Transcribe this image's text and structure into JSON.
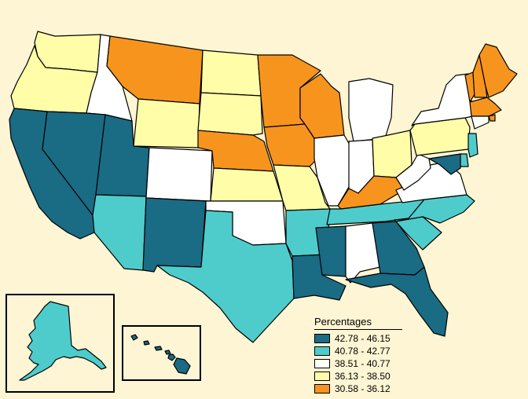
{
  "legend": {
    "title": "Percentages",
    "classes": [
      {
        "label": "42.78 - 46.15",
        "color": "#1A6B84"
      },
      {
        "label": "40.78 - 42.77",
        "color": "#4ECCCC"
      },
      {
        "label": "38.51 - 40.77",
        "color": "#FFFFFF"
      },
      {
        "label": "36.13 - 38.50",
        "color": "#FFFDA8"
      },
      {
        "label": "30.58 - 36.12",
        "color": "#F7941D"
      }
    ]
  },
  "states": [
    {
      "id": "WA",
      "class": 3
    },
    {
      "id": "OR",
      "class": 3
    },
    {
      "id": "CA",
      "class": 0
    },
    {
      "id": "ID",
      "class": 2
    },
    {
      "id": "NV",
      "class": 0
    },
    {
      "id": "MT",
      "class": 4
    },
    {
      "id": "WY",
      "class": 3
    },
    {
      "id": "UT",
      "class": 0
    },
    {
      "id": "AZ",
      "class": 1
    },
    {
      "id": "CO",
      "class": 2
    },
    {
      "id": "NM",
      "class": 0
    },
    {
      "id": "ND",
      "class": 3
    },
    {
      "id": "SD",
      "class": 3
    },
    {
      "id": "NE",
      "class": 4
    },
    {
      "id": "KS",
      "class": 3
    },
    {
      "id": "OK",
      "class": 2
    },
    {
      "id": "TX",
      "class": 1
    },
    {
      "id": "MN",
      "class": 4
    },
    {
      "id": "IA",
      "class": 4
    },
    {
      "id": "MO",
      "class": 3
    },
    {
      "id": "AR",
      "class": 1
    },
    {
      "id": "LA",
      "class": 0
    },
    {
      "id": "WI",
      "class": 4
    },
    {
      "id": "IL",
      "class": 2
    },
    {
      "id": "MI",
      "class": 2
    },
    {
      "id": "IN",
      "class": 2
    },
    {
      "id": "OH",
      "class": 3
    },
    {
      "id": "KY",
      "class": 4
    },
    {
      "id": "TN",
      "class": 1
    },
    {
      "id": "MS",
      "class": 0
    },
    {
      "id": "AL",
      "class": 2
    },
    {
      "id": "GA",
      "class": 0
    },
    {
      "id": "FL",
      "class": 0
    },
    {
      "id": "SC",
      "class": 1
    },
    {
      "id": "NC",
      "class": 1
    },
    {
      "id": "VA",
      "class": 2
    },
    {
      "id": "WV",
      "class": 2
    },
    {
      "id": "PA",
      "class": 3
    },
    {
      "id": "NY",
      "class": 2
    },
    {
      "id": "VT",
      "class": 4
    },
    {
      "id": "NH",
      "class": 4
    },
    {
      "id": "ME",
      "class": 4
    },
    {
      "id": "MA",
      "class": 4
    },
    {
      "id": "RI",
      "class": 4
    },
    {
      "id": "CT",
      "class": 2
    },
    {
      "id": "NJ",
      "class": 1
    },
    {
      "id": "DE",
      "class": 1
    },
    {
      "id": "MD",
      "class": 0
    },
    {
      "id": "AK",
      "class": 1
    },
    {
      "id": "HI",
      "class": 0
    }
  ]
}
